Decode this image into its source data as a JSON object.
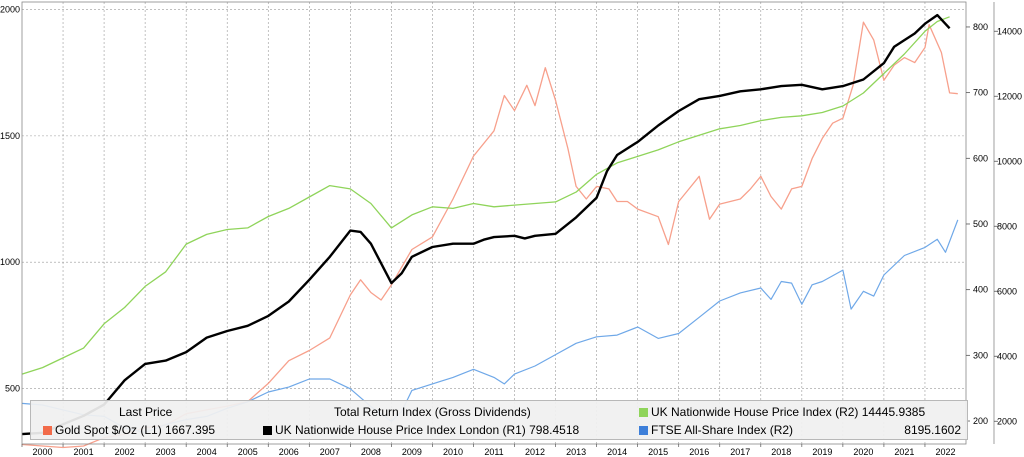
{
  "chart_data": {
    "type": "line",
    "x_ticks": [
      "2000",
      "2001",
      "2002",
      "2003",
      "2004",
      "2005",
      "2006",
      "2007",
      "2008",
      "2009",
      "2010",
      "2011",
      "2012",
      "2013",
      "2014",
      "2015",
      "2016",
      "2017",
      "2018",
      "2019",
      "2020",
      "2021",
      "2022"
    ],
    "axes": {
      "L1": {
        "min": 280,
        "max": 2030,
        "ticks": [
          500,
          1000,
          1500,
          2000
        ]
      },
      "R1": {
        "min": 165,
        "max": 838,
        "ticks": [
          200,
          300,
          400,
          500,
          600,
          700,
          800
        ]
      },
      "R2": {
        "min": 1300,
        "max": 14900,
        "ticks": [
          2000,
          4000,
          6000,
          8000,
          10000,
          12000,
          14000
        ]
      }
    },
    "grid": true,
    "legend": {
      "header_left": "Last Price",
      "header_mid": "Total Return Index (Gross Dividends)",
      "items": [
        {
          "id": "gold",
          "label": "Gold Spot $/Oz  (L1)  1667.395"
        },
        {
          "id": "london",
          "label": "UK Nationwide House Price Index London  (R1)  798.4518"
        },
        {
          "id": "uk",
          "label": "UK Nationwide House Price Index  (R2)  14445.9385"
        },
        {
          "id": "ftse",
          "label": "FTSE All-Share Index  (R2)"
        },
        {
          "id": "ftse_value",
          "label": "8195.1602"
        }
      ]
    },
    "series": [
      {
        "id": "gold",
        "axis": "L1",
        "color": "#f7a08c",
        "width": 1.3,
        "points": [
          [
            2000,
            278
          ],
          [
            2000.5,
            272
          ],
          [
            2001,
            266
          ],
          [
            2001.5,
            272
          ],
          [
            2002,
            305
          ],
          [
            2002.5,
            318
          ],
          [
            2003,
            345
          ],
          [
            2003.5,
            355
          ],
          [
            2004,
            400
          ],
          [
            2004.5,
            415
          ],
          [
            2005,
            430
          ],
          [
            2005.5,
            448
          ],
          [
            2006,
            520
          ],
          [
            2006.5,
            610
          ],
          [
            2007,
            650
          ],
          [
            2007.5,
            700
          ],
          [
            2008,
            870
          ],
          [
            2008.25,
            930
          ],
          [
            2008.5,
            880
          ],
          [
            2008.75,
            850
          ],
          [
            2009,
            910
          ],
          [
            2009.5,
            1050
          ],
          [
            2010,
            1100
          ],
          [
            2010.5,
            1250
          ],
          [
            2011,
            1420
          ],
          [
            2011.5,
            1520
          ],
          [
            2011.75,
            1660
          ],
          [
            2012,
            1600
          ],
          [
            2012.3,
            1700
          ],
          [
            2012.5,
            1620
          ],
          [
            2012.75,
            1770
          ],
          [
            2013,
            1640
          ],
          [
            2013.3,
            1450
          ],
          [
            2013.5,
            1300
          ],
          [
            2013.75,
            1250
          ],
          [
            2014,
            1300
          ],
          [
            2014.3,
            1290
          ],
          [
            2014.5,
            1240
          ],
          [
            2014.75,
            1240
          ],
          [
            2015,
            1210
          ],
          [
            2015.5,
            1180
          ],
          [
            2015.75,
            1070
          ],
          [
            2016,
            1240
          ],
          [
            2016.25,
            1290
          ],
          [
            2016.5,
            1340
          ],
          [
            2016.75,
            1170
          ],
          [
            2017,
            1230
          ],
          [
            2017.5,
            1250
          ],
          [
            2017.75,
            1290
          ],
          [
            2018,
            1340
          ],
          [
            2018.25,
            1260
          ],
          [
            2018.5,
            1210
          ],
          [
            2018.75,
            1290
          ],
          [
            2019,
            1300
          ],
          [
            2019.25,
            1410
          ],
          [
            2019.5,
            1490
          ],
          [
            2019.75,
            1550
          ],
          [
            2020,
            1570
          ],
          [
            2020.25,
            1700
          ],
          [
            2020.5,
            1950
          ],
          [
            2020.75,
            1880
          ],
          [
            2021,
            1720
          ],
          [
            2021.25,
            1780
          ],
          [
            2021.5,
            1810
          ],
          [
            2021.75,
            1790
          ],
          [
            2022,
            1850
          ],
          [
            2022.1,
            1940
          ],
          [
            2022.4,
            1830
          ],
          [
            2022.6,
            1670
          ],
          [
            2022.8,
            1667
          ]
        ]
      },
      {
        "id": "uk",
        "axis": "R2",
        "color": "#8fd45a",
        "width": 1.3,
        "points": [
          [
            2000,
            3450
          ],
          [
            2000.5,
            3650
          ],
          [
            2001,
            3950
          ],
          [
            2001.5,
            4250
          ],
          [
            2002,
            5000
          ],
          [
            2002.5,
            5500
          ],
          [
            2003,
            6150
          ],
          [
            2003.5,
            6600
          ],
          [
            2004,
            7450
          ],
          [
            2004.5,
            7750
          ],
          [
            2005,
            7900
          ],
          [
            2005.5,
            7950
          ],
          [
            2006,
            8300
          ],
          [
            2006.5,
            8550
          ],
          [
            2007,
            8900
          ],
          [
            2007.5,
            9250
          ],
          [
            2008,
            9150
          ],
          [
            2008.5,
            8700
          ],
          [
            2009,
            7950
          ],
          [
            2009.5,
            8350
          ],
          [
            2010,
            8600
          ],
          [
            2010.5,
            8550
          ],
          [
            2011,
            8700
          ],
          [
            2011.5,
            8600
          ],
          [
            2012,
            8650
          ],
          [
            2012.5,
            8700
          ],
          [
            2013,
            8750
          ],
          [
            2013.5,
            9050
          ],
          [
            2014,
            9600
          ],
          [
            2014.5,
            9950
          ],
          [
            2015,
            10150
          ],
          [
            2015.5,
            10350
          ],
          [
            2016,
            10600
          ],
          [
            2016.5,
            10800
          ],
          [
            2017,
            11000
          ],
          [
            2017.5,
            11100
          ],
          [
            2018,
            11250
          ],
          [
            2018.5,
            11350
          ],
          [
            2019,
            11400
          ],
          [
            2019.5,
            11500
          ],
          [
            2020,
            11700
          ],
          [
            2020.5,
            12100
          ],
          [
            2021,
            12700
          ],
          [
            2021.5,
            13300
          ],
          [
            2022,
            14000
          ],
          [
            2022.3,
            14300
          ],
          [
            2022.6,
            14446
          ]
        ]
      },
      {
        "id": "ftse",
        "axis": "R2",
        "color": "#6fa8e8",
        "width": 1.2,
        "points": [
          [
            2000,
            2550
          ],
          [
            2000.5,
            2500
          ],
          [
            2001,
            2350
          ],
          [
            2001.5,
            2200
          ],
          [
            2002,
            2150
          ],
          [
            2002.5,
            1800
          ],
          [
            2003,
            1650
          ],
          [
            2003.5,
            1900
          ],
          [
            2004,
            2050
          ],
          [
            2004.5,
            2150
          ],
          [
            2005,
            2400
          ],
          [
            2005.5,
            2600
          ],
          [
            2006,
            2900
          ],
          [
            2006.5,
            3050
          ],
          [
            2007,
            3300
          ],
          [
            2007.5,
            3300
          ],
          [
            2008,
            3000
          ],
          [
            2008.5,
            2450
          ],
          [
            2009,
            2000
          ],
          [
            2009.25,
            2300
          ],
          [
            2009.5,
            2950
          ],
          [
            2010,
            3150
          ],
          [
            2010.5,
            3350
          ],
          [
            2011,
            3600
          ],
          [
            2011.5,
            3350
          ],
          [
            2011.75,
            3150
          ],
          [
            2012,
            3450
          ],
          [
            2012.5,
            3700
          ],
          [
            2013,
            4050
          ],
          [
            2013.5,
            4400
          ],
          [
            2014,
            4600
          ],
          [
            2014.5,
            4650
          ],
          [
            2015,
            4900
          ],
          [
            2015.5,
            4550
          ],
          [
            2016,
            4700
          ],
          [
            2016.5,
            5200
          ],
          [
            2017,
            5700
          ],
          [
            2017.5,
            5950
          ],
          [
            2018,
            6100
          ],
          [
            2018.25,
            5750
          ],
          [
            2018.5,
            6300
          ],
          [
            2018.75,
            6250
          ],
          [
            2019,
            5600
          ],
          [
            2019.25,
            6200
          ],
          [
            2019.5,
            6300
          ],
          [
            2020,
            6650
          ],
          [
            2020.2,
            5450
          ],
          [
            2020.5,
            6000
          ],
          [
            2020.75,
            5850
          ],
          [
            2021,
            6500
          ],
          [
            2021.5,
            7100
          ],
          [
            2022,
            7350
          ],
          [
            2022.3,
            7600
          ],
          [
            2022.5,
            7200
          ],
          [
            2022.8,
            8195
          ]
        ]
      },
      {
        "id": "london",
        "axis": "R1",
        "color": "#000000",
        "width": 2.4,
        "points": [
          [
            2000,
            180
          ],
          [
            2000.5,
            182
          ],
          [
            2001,
            195
          ],
          [
            2001.5,
            208
          ],
          [
            2002,
            225
          ],
          [
            2002.5,
            262
          ],
          [
            2003,
            287
          ],
          [
            2003.5,
            292
          ],
          [
            2004,
            305
          ],
          [
            2004.5,
            327
          ],
          [
            2005,
            337
          ],
          [
            2005.5,
            345
          ],
          [
            2006,
            360
          ],
          [
            2006.5,
            382
          ],
          [
            2007,
            415
          ],
          [
            2007.5,
            450
          ],
          [
            2008,
            490
          ],
          [
            2008.25,
            488
          ],
          [
            2008.5,
            470
          ],
          [
            2009,
            410
          ],
          [
            2009.25,
            425
          ],
          [
            2009.5,
            450
          ],
          [
            2010,
            465
          ],
          [
            2010.5,
            470
          ],
          [
            2011,
            470
          ],
          [
            2011.25,
            476
          ],
          [
            2011.5,
            480
          ],
          [
            2012,
            482
          ],
          [
            2012.25,
            478
          ],
          [
            2012.5,
            482
          ],
          [
            2013,
            485
          ],
          [
            2013.5,
            510
          ],
          [
            2014,
            540
          ],
          [
            2014.25,
            580
          ],
          [
            2014.5,
            605
          ],
          [
            2015,
            625
          ],
          [
            2015.5,
            650
          ],
          [
            2016,
            672
          ],
          [
            2016.5,
            690
          ],
          [
            2017,
            695
          ],
          [
            2017.5,
            702
          ],
          [
            2018,
            705
          ],
          [
            2018.5,
            710
          ],
          [
            2019,
            712
          ],
          [
            2019.5,
            705
          ],
          [
            2020,
            710
          ],
          [
            2020.5,
            720
          ],
          [
            2021,
            745
          ],
          [
            2021.25,
            770
          ],
          [
            2021.5,
            780
          ],
          [
            2021.75,
            790
          ],
          [
            2022,
            805
          ],
          [
            2022.3,
            818
          ],
          [
            2022.6,
            798
          ]
        ]
      }
    ]
  }
}
